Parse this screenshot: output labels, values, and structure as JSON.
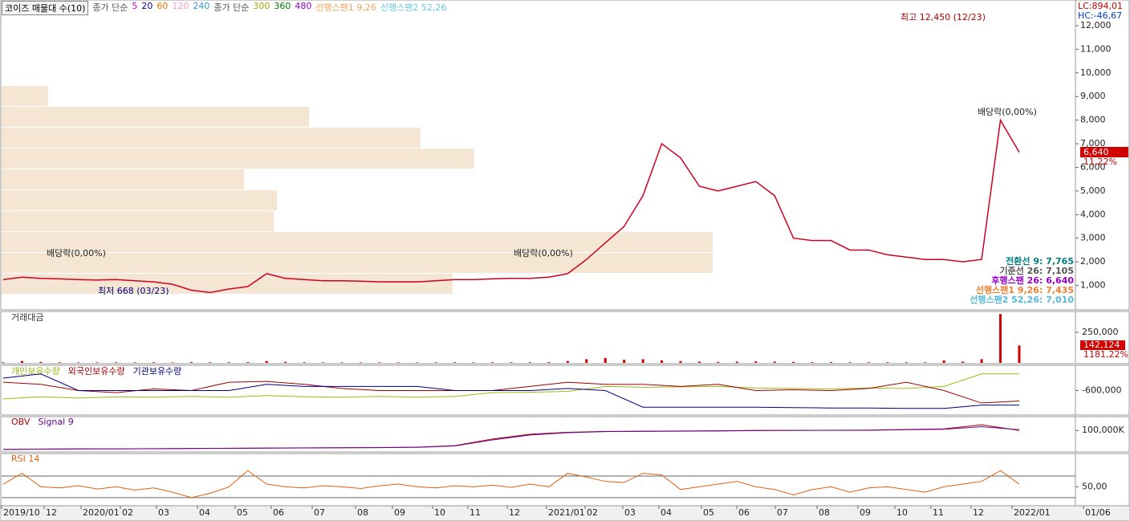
{
  "chart_data": {
    "type": "stock",
    "main": {
      "legend": [
        {
          "text": "코이즈 매물대 수(10)",
          "color": "#000000"
        },
        {
          "text": "종가 단순",
          "color": "#555555"
        },
        {
          "text": "5",
          "color": "#cc00cc"
        },
        {
          "text": "20",
          "color": "#000080"
        },
        {
          "text": "60",
          "color": "#e07000"
        },
        {
          "text": "120",
          "color": "#ff99cc"
        },
        {
          "text": "240",
          "color": "#3399cc"
        },
        {
          "text": "종가 단순",
          "color": "#555555"
        },
        {
          "text": "300",
          "color": "#99aa00"
        },
        {
          "text": "360",
          "color": "#008000"
        },
        {
          "text": "480",
          "color": "#9900cc"
        },
        {
          "text": "선행스팬1 9,26",
          "color": "#f4a460"
        },
        {
          "text": "선행스팬2 52,26",
          "color": "#66ccdd"
        }
      ],
      "lc": "LC:894,01",
      "hc": "HC:-46,67",
      "annotations": {
        "high": "최고 12,450 (12/23)",
        "low": "최저 668 (03/23)",
        "dividend": [
          "배당락(0,00%)",
          "배당락(0,00%)",
          "배당락(0,00%)"
        ]
      },
      "last_price_label": "6,640",
      "last_change": "11,22%",
      "ichimoku": [
        {
          "text": "전환선 9: 7,765",
          "color": "#008080"
        },
        {
          "text": "기준선 26: 7,105",
          "color": "#555555"
        },
        {
          "text": "후행스팬 26: 6,640",
          "color": "#9900cc"
        },
        {
          "text": "선행스팬1 9,26: 7,435",
          "color": "#f08030"
        },
        {
          "text": "선행스팬2 52,26: 7,010",
          "color": "#55bbdd"
        }
      ],
      "ylim": [
        0,
        12950
      ],
      "yticks": [
        {
          "value": 1000,
          "label": "1,000"
        },
        {
          "value": 2000,
          "label": "2,000"
        },
        {
          "value": 3000,
          "label": "3,000"
        },
        {
          "value": 4000,
          "label": "4,000"
        },
        {
          "value": 5000,
          "label": "5,000"
        },
        {
          "value": 6000,
          "label": "6,000"
        },
        {
          "value": 7000,
          "label": "7,000"
        },
        {
          "value": 8000,
          "label": "8,000"
        },
        {
          "value": 9000,
          "label": "9,000"
        },
        {
          "value": 10000,
          "label": "10,000"
        },
        {
          "value": 11000,
          "label": "11,000"
        },
        {
          "value": 12000,
          "label": "12,000"
        }
      ],
      "price": {
        "name": "종가",
        "color": "#d00020",
        "values": [
          1250,
          1350,
          1300,
          1280,
          1250,
          1230,
          1250,
          1200,
          1150,
          1050,
          800,
          700,
          850,
          950,
          1500,
          1300,
          1250,
          1200,
          1200,
          1180,
          1150,
          1150,
          1150,
          1200,
          1250,
          1250,
          1280,
          1300,
          1300,
          1350,
          1500,
          2100,
          2800,
          3500,
          4800,
          7000,
          6400,
          5200,
          5000,
          5200,
          5400,
          4800,
          3000,
          2900,
          2900,
          2500,
          2500,
          2300,
          2200,
          2100,
          2100,
          2000,
          2100,
          8000,
          6640
        ]
      },
      "volume_profile": [
        58,
        384,
        523,
        590,
        303,
        344,
        340,
        888,
        888,
        563
      ],
      "volume_profile_color": "#f5e6d3"
    },
    "volume": {
      "title": "거래대금",
      "color": "#cc0000",
      "ylim": [
        0,
        421000
      ],
      "yticks": [
        {
          "value": 250000,
          "label": "250,000"
        }
      ],
      "last_value_label": "142,124",
      "last_change": "1181,22%",
      "values": [
        5000,
        15000,
        8000,
        5000,
        4000,
        4000,
        5000,
        4000,
        5000,
        4000,
        6000,
        5000,
        5000,
        6000,
        15000,
        8000,
        5000,
        4000,
        4000,
        4000,
        4000,
        4000,
        4000,
        4000,
        5000,
        4000,
        5000,
        5000,
        5000,
        6000,
        15000,
        30000,
        40000,
        25000,
        30000,
        20000,
        15000,
        10000,
        8000,
        10000,
        12000,
        10000,
        8000,
        6000,
        6000,
        5000,
        5000,
        5000,
        5000,
        5000,
        20000,
        10000,
        30000,
        400000,
        142124
      ]
    },
    "holdings": {
      "series": [
        {
          "name": "개인보유수량",
          "color": "#99bb11",
          "values": [
            -800000,
            -750000,
            -780000,
            -750000,
            -760000,
            -740000,
            -760000,
            -720000,
            -750000,
            -760000,
            -740000,
            -760000,
            -740000,
            -650000,
            -640000,
            -620000,
            -500000,
            -520000,
            -510000,
            -500000,
            -540000,
            -550000,
            -560000,
            -540000,
            -550000,
            -500000,
            -200000,
            -200000
          ]
        },
        {
          "name": "외국인보유수량",
          "color": "#a00000",
          "values": [
            -400000,
            -450000,
            -600000,
            -650000,
            -560000,
            -600000,
            -400000,
            -380000,
            -450000,
            -550000,
            -600000,
            -600000,
            -600000,
            -600000,
            -500000,
            -400000,
            -450000,
            -450000,
            -500000,
            -450000,
            -600000,
            -580000,
            -600000,
            -550000,
            -400000,
            -600000,
            -900000,
            -850000
          ]
        },
        {
          "name": "기관보유수량",
          "color": "#000080",
          "values": [
            -300000,
            -200000,
            -600000,
            -600000,
            -600000,
            -600000,
            -600000,
            -450000,
            -500000,
            -500000,
            -500000,
            -500000,
            -600000,
            -600000,
            -600000,
            -550000,
            -600000,
            -1000000,
            -1000000,
            -1000000,
            -1000000,
            -1010000,
            -1020000,
            -1020000,
            -1030000,
            -1030000,
            -950000,
            -950000
          ]
        }
      ],
      "ylim": [
        -1150000,
        -50000
      ],
      "yticks": [
        {
          "value": -600000,
          "label": "-600,000"
        }
      ]
    },
    "obv": {
      "series": [
        {
          "name": "OBV",
          "color": "#aa0000",
          "values": [
            0,
            2000,
            3000,
            3000,
            4000,
            5000,
            6000,
            7000,
            8000,
            9000,
            10000,
            12000,
            20000,
            55000,
            80000,
            90000,
            95000,
            96000,
            97000,
            98000,
            100000,
            100000,
            101000,
            102000,
            105000,
            108000,
            130000,
            100000
          ]
        },
        {
          "name": "Signal 9",
          "color": "#660099",
          "values": [
            0,
            1500,
            2500,
            3000,
            3500,
            4500,
            5500,
            6500,
            7500,
            8500,
            9500,
            11000,
            18000,
            50000,
            76000,
            88000,
            94000,
            95000,
            96000,
            97000,
            99000,
            100000,
            100000,
            101000,
            104000,
            106000,
            120000,
            104000
          ]
        }
      ],
      "ylim": [
        -5000,
        160000
      ],
      "yticks": [
        {
          "value": 100000,
          "label": "100,000K"
        }
      ]
    },
    "rsi": {
      "title": "RSI 14",
      "color": "#e06010",
      "ylim": [
        15,
        110
      ],
      "levels": [
        70,
        30
      ],
      "yticks": [
        {
          "value": 50,
          "label": "50,00"
        }
      ],
      "values": [
        55,
        75,
        50,
        48,
        52,
        46,
        50,
        44,
        48,
        40,
        30,
        38,
        50,
        80,
        55,
        50,
        48,
        52,
        50,
        47,
        52,
        55,
        50,
        48,
        52,
        50,
        53,
        49,
        55,
        50,
        75,
        68,
        60,
        58,
        75,
        72,
        45,
        50,
        55,
        60,
        50,
        45,
        35,
        45,
        50,
        40,
        48,
        50,
        45,
        40,
        50,
        55,
        60,
        80,
        55
      ]
    },
    "dates": [
      "2019/10",
      "12",
      "2020/01",
      "02",
      "03",
      "04",
      "05",
      "06",
      "07",
      "08",
      "09",
      "10",
      "11",
      "12",
      "2021/01",
      "02",
      "03",
      "04",
      "05",
      "06",
      "07",
      "08",
      "09",
      "10",
      "11",
      "12",
      "2022/01",
      "01/06"
    ]
  }
}
